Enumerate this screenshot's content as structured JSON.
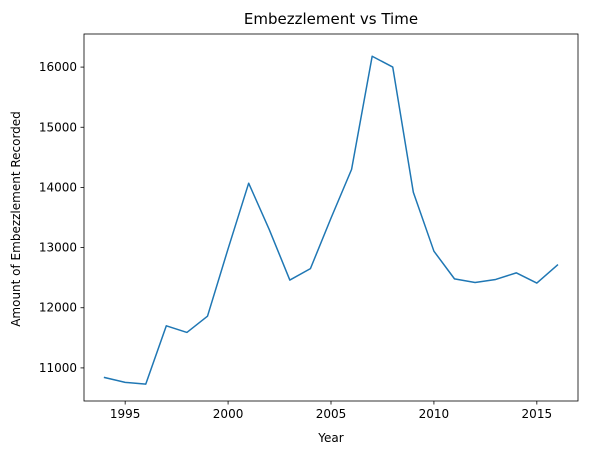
{
  "chart_data": {
    "type": "line",
    "title": "Embezzlement vs Time",
    "xlabel": "Year",
    "ylabel": "Amount of Embezzlement Recorded",
    "xlim": [
      1993,
      2017
    ],
    "ylim": [
      10450,
      16550
    ],
    "x_ticks": [
      1995,
      2000,
      2005,
      2010,
      2015
    ],
    "y_ticks": [
      11000,
      12000,
      13000,
      14000,
      15000,
      16000
    ],
    "grid": false,
    "legend": "none",
    "series": [
      {
        "color": "#1f77b4",
        "x": [
          1994,
          1995,
          1996,
          1997,
          1998,
          1999,
          2000,
          2001,
          2002,
          2003,
          2004,
          2005,
          2006,
          2007,
          2008,
          2009,
          2010,
          2011,
          2012,
          2013,
          2014,
          2015,
          2016
        ],
        "y": [
          10840,
          10760,
          10730,
          11700,
          11590,
          11860,
          12980,
          14070,
          13300,
          12460,
          12650,
          13490,
          14300,
          16180,
          16000,
          13920,
          12940,
          12480,
          12420,
          12470,
          12580,
          12410,
          12710
        ]
      }
    ]
  }
}
